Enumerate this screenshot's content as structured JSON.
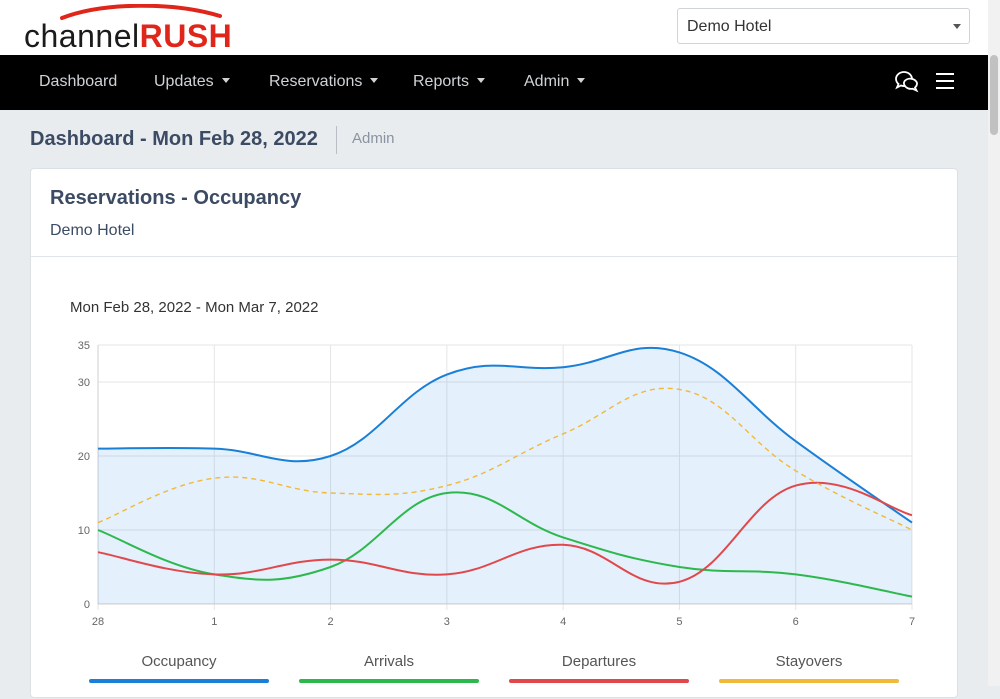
{
  "app": {
    "logo_part1": "channel",
    "logo_part2": "RUSH"
  },
  "hotel_select": {
    "value": "Demo Hotel"
  },
  "nav": {
    "items": [
      {
        "label": "Dashboard",
        "dropdown": false
      },
      {
        "label": "Updates",
        "dropdown": true
      },
      {
        "label": "Reservations",
        "dropdown": true
      },
      {
        "label": "Reports",
        "dropdown": true
      },
      {
        "label": "Admin",
        "dropdown": true
      }
    ],
    "icons": [
      "chat-icon",
      "hamburger-menu-icon"
    ]
  },
  "page": {
    "title": "Dashboard - Mon Feb 28, 2022",
    "crumb": "Admin"
  },
  "card": {
    "title": "Reservations - Occupancy",
    "subtitle": "Demo Hotel",
    "date_range": "Mon Feb 28, 2022 - Mon Mar 7, 2022"
  },
  "chart_data": {
    "type": "line",
    "x": [
      "28",
      "1",
      "2",
      "3",
      "4",
      "5",
      "6",
      "7"
    ],
    "y_ticks": [
      0,
      10,
      20,
      30,
      35
    ],
    "ylim": [
      0,
      35
    ],
    "grid": true,
    "legend_placement": "bottom",
    "series": [
      {
        "name": "Occupancy",
        "values": [
          21,
          21,
          20,
          31,
          32,
          34,
          22,
          11
        ],
        "color": "#1a7fd6",
        "fill": true,
        "dashed": false
      },
      {
        "name": "Arrivals",
        "values": [
          10,
          4,
          5,
          15,
          9,
          5,
          4,
          1
        ],
        "color": "#2db84d",
        "fill": false,
        "dashed": false
      },
      {
        "name": "Departures",
        "values": [
          7,
          4,
          6,
          4,
          8,
          3,
          16,
          12
        ],
        "color": "#e0484b",
        "fill": false,
        "dashed": false
      },
      {
        "name": "Stayovers",
        "values": [
          11,
          17,
          15,
          16,
          23,
          29,
          18,
          10
        ],
        "color": "#f2b83a",
        "fill": false,
        "dashed": true
      }
    ]
  }
}
